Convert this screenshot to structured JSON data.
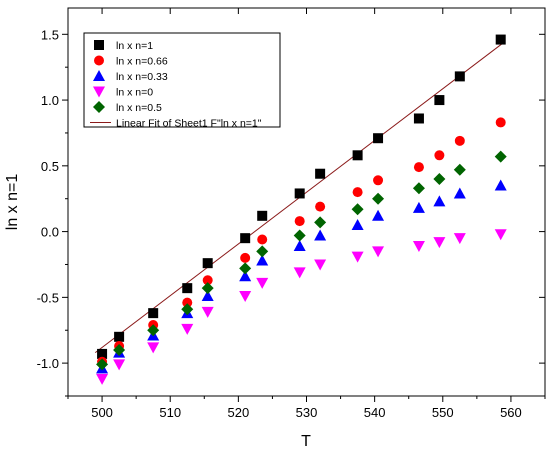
{
  "chart_data": {
    "type": "scatter",
    "xlabel": "T",
    "ylabel": "ln x n=1",
    "xlim": [
      495,
      565
    ],
    "ylim": [
      -1.25,
      1.7
    ],
    "xticks": [
      500,
      510,
      520,
      530,
      540,
      550,
      560
    ],
    "yticks": [
      -1.0,
      -0.5,
      0.0,
      0.5,
      1.0,
      1.5
    ],
    "x": [
      500,
      502.5,
      507.5,
      512.5,
      515.5,
      521,
      523.5,
      529,
      532,
      537.5,
      540.5,
      546.5,
      549.5,
      552.5,
      558.5
    ],
    "series": [
      {
        "name": "ln x n=1",
        "marker": "square",
        "color": "#000000",
        "values": [
          -0.93,
          -0.8,
          -0.62,
          -0.43,
          -0.24,
          -0.05,
          0.12,
          0.29,
          0.44,
          0.58,
          0.71,
          0.86,
          1.0,
          1.18,
          1.46
        ]
      },
      {
        "name": "ln x n=0.66",
        "marker": "circle",
        "color": "#ff0000",
        "values": [
          -0.99,
          -0.87,
          -0.71,
          -0.54,
          -0.37,
          -0.2,
          -0.06,
          0.08,
          0.19,
          0.3,
          0.39,
          0.49,
          0.58,
          0.69,
          0.83
        ]
      },
      {
        "name": "ln x n=0.33",
        "marker": "triangle-up",
        "color": "#0000ff",
        "values": [
          -1.04,
          -0.92,
          -0.79,
          -0.62,
          -0.49,
          -0.34,
          -0.22,
          -0.11,
          -0.03,
          0.05,
          0.12,
          0.18,
          0.23,
          0.29,
          0.35
        ]
      },
      {
        "name": "ln x n=0",
        "marker": "triangle-down",
        "color": "#ff00ff",
        "values": [
          -1.12,
          -1.01,
          -0.88,
          -0.74,
          -0.61,
          -0.49,
          -0.39,
          -0.31,
          -0.25,
          -0.19,
          -0.15,
          -0.11,
          -0.08,
          -0.05,
          -0.02
        ]
      },
      {
        "name": "ln x n=0.5",
        "marker": "diamond",
        "color": "#006400",
        "values": [
          -1.01,
          -0.9,
          -0.75,
          -0.59,
          -0.43,
          -0.28,
          -0.15,
          -0.03,
          0.07,
          0.17,
          0.25,
          0.33,
          0.4,
          0.47,
          0.57
        ]
      }
    ],
    "fit_line": {
      "name": "Linear Fit of Sheet1 F\"ln x n=1\"",
      "color": "#8b1a1a",
      "x": [
        499,
        559
      ],
      "y": [
        -0.92,
        1.44
      ]
    },
    "legend": "top-left",
    "grid": false
  }
}
